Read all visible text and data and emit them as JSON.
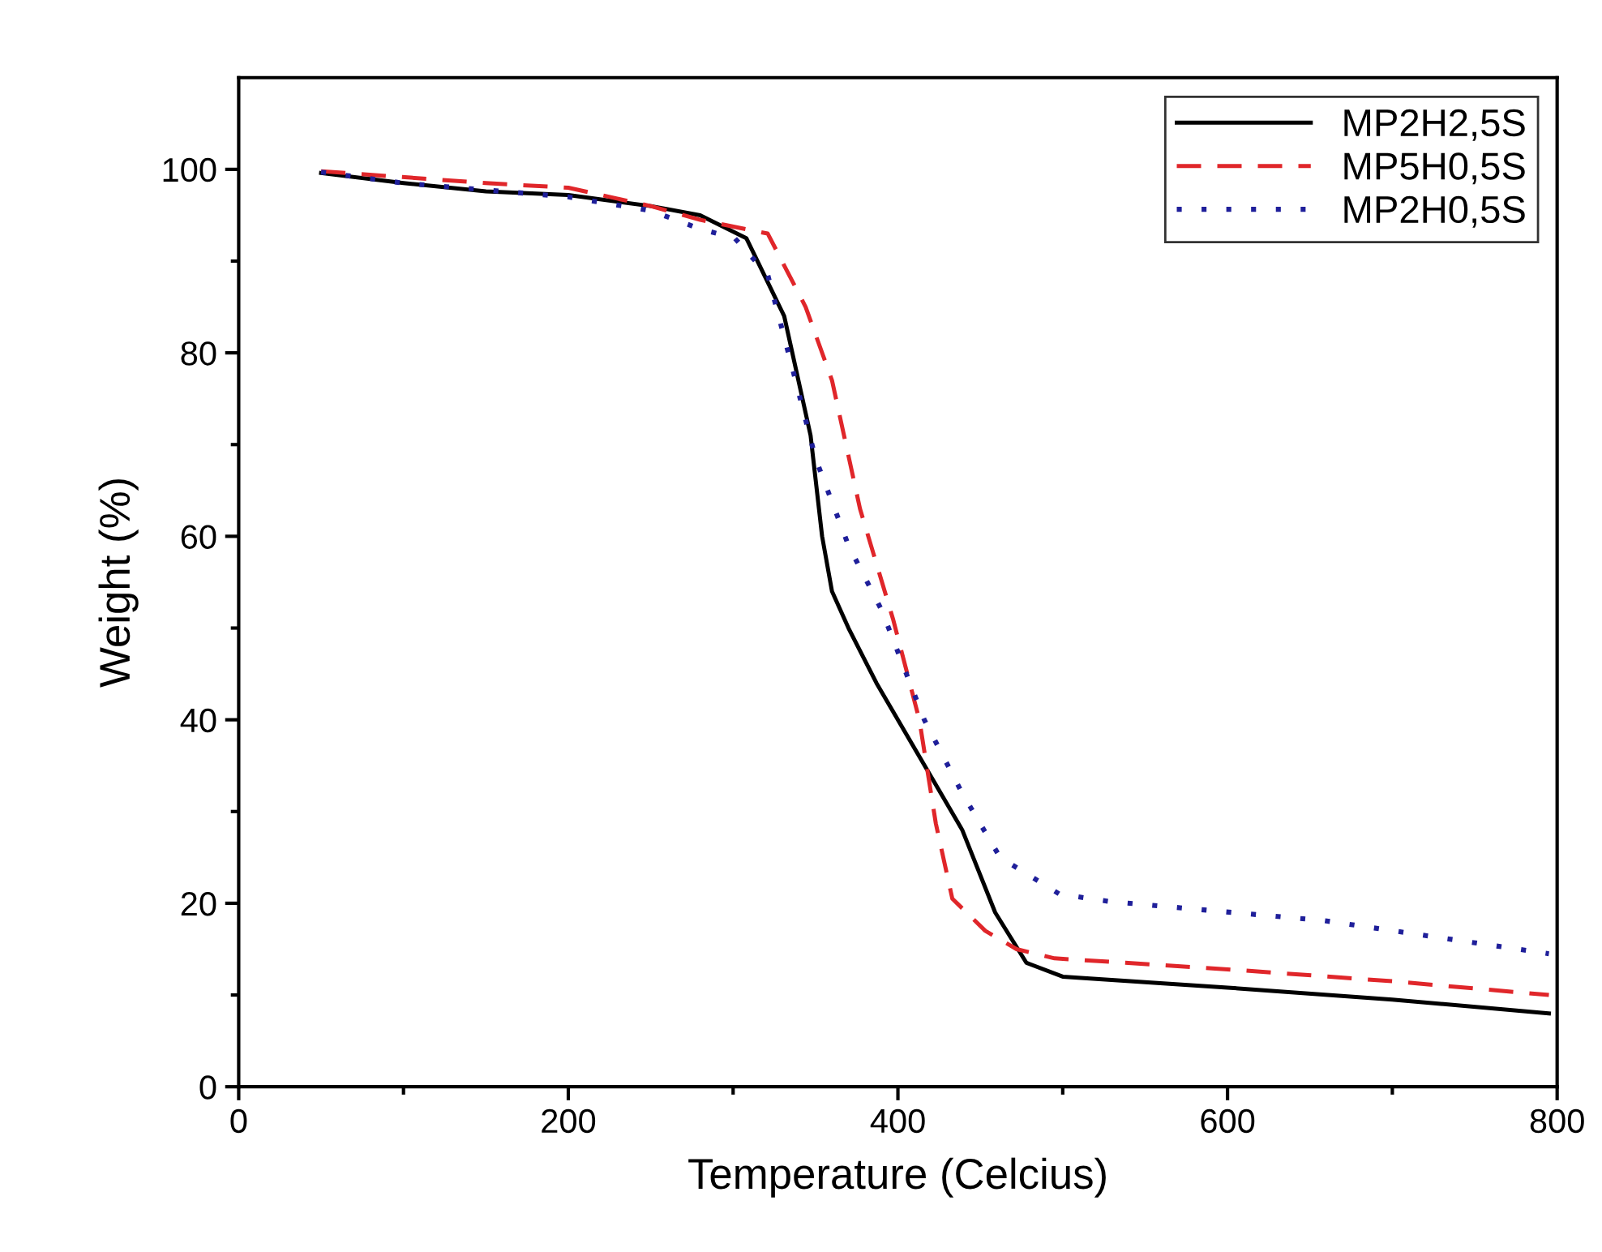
{
  "chart_data": {
    "type": "line",
    "xlabel": "Temperature (Celcius)",
    "ylabel": "Weight (%)",
    "xlim": [
      0,
      800
    ],
    "ylim": [
      0,
      110
    ],
    "xticks": [
      0,
      {
        "value": 100,
        "label": null
      },
      200,
      {
        "value": 300,
        "label": null
      },
      400,
      {
        "value": 500,
        "label": null
      },
      600,
      {
        "value": 700,
        "label": null
      },
      800
    ],
    "yticks": [
      0,
      {
        "value": 10,
        "label": null
      },
      20,
      {
        "value": 30,
        "label": null
      },
      40,
      {
        "value": 50,
        "label": null
      },
      60,
      {
        "value": 70,
        "label": null
      },
      80,
      {
        "value": 90,
        "label": null
      },
      100
    ],
    "grid": false,
    "legend": "top right",
    "series": [
      {
        "name": "MP2H2,5S",
        "color": "#000000",
        "line_style": "solid",
        "x": [
          50,
          100,
          150,
          200,
          250,
          280,
          308,
          331,
          347,
          354,
          360,
          370,
          387,
          413,
          439,
          459,
          478,
          500,
          600,
          700,
          795
        ],
        "values": [
          99.6,
          98.5,
          97.6,
          97.2,
          96,
          95,
          92.5,
          84,
          71,
          60,
          54,
          50,
          44,
          36,
          28,
          19,
          13.5,
          12,
          10.8,
          9.5,
          8
        ]
      },
      {
        "name": "MP5H0,5S",
        "color": "#e0262a",
        "line_style": "dashed",
        "x": [
          50,
          150,
          200,
          250,
          280,
          321,
          344,
          360,
          377,
          397,
          413,
          423,
          433,
          453,
          472,
          495,
          600,
          700,
          795
        ],
        "values": [
          99.8,
          98.5,
          98,
          96,
          94.5,
          93,
          85,
          77,
          63,
          51,
          40,
          28.7,
          20.5,
          17,
          15,
          14,
          12.8,
          11.5,
          10
        ]
      },
      {
        "name": "MP2H0,5S",
        "color": "#1f1f9a",
        "line_style": "dotted",
        "x": [
          50,
          100,
          200,
          250,
          280,
          301,
          321,
          335,
          350,
          370,
          390,
          416,
          439,
          462,
          498,
          528,
          659,
          795
        ],
        "values": [
          99.7,
          98.5,
          97,
          95.5,
          93.5,
          92.5,
          88.5,
          79,
          68.5,
          59,
          52,
          40,
          32,
          25,
          21,
          20.2,
          18.1,
          14.5
        ]
      }
    ]
  }
}
